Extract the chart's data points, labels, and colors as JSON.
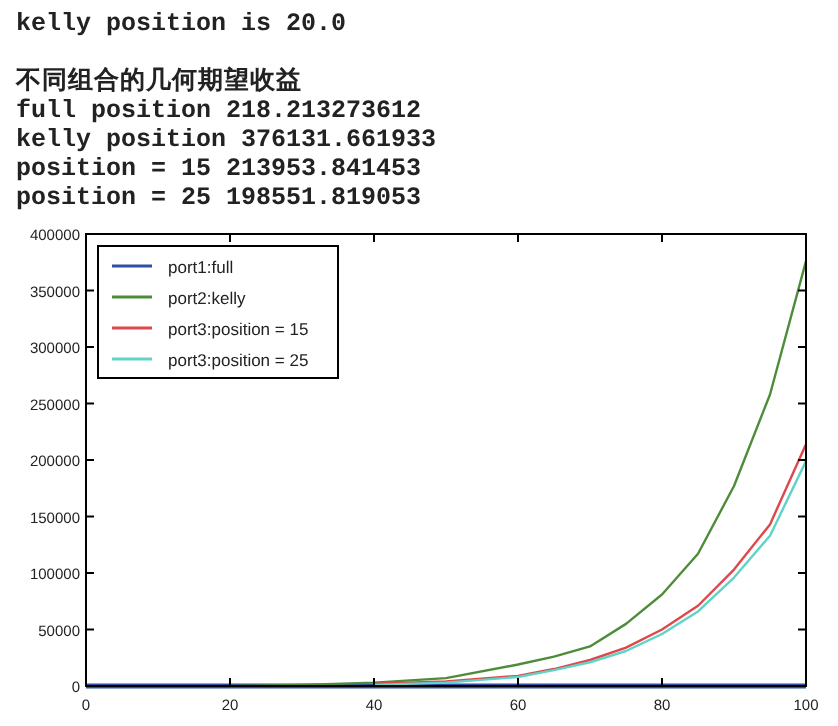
{
  "chart_data": {
    "type": "line",
    "annotations": [
      "kelly position is 20.0",
      "不同组合的几何期望收益",
      "full position 218.213273612",
      "kelly position 376131.661933",
      "position = 15 213953.841453",
      "position = 25 198551.819053"
    ],
    "x": [
      0,
      10,
      20,
      30,
      40,
      50,
      60,
      65,
      70,
      75,
      80,
      85,
      90,
      95,
      100
    ],
    "series": [
      {
        "name": "port1:full",
        "color": "#2d4fa8",
        "values": [
          0,
          0,
          0,
          0,
          0,
          0,
          0,
          0,
          0,
          0,
          0,
          0,
          0,
          0,
          0
        ]
      },
      {
        "name": "port2:kelly",
        "color": "#4e8c3a",
        "values": [
          null,
          null,
          0,
          1000,
          3000,
          7000,
          19000,
          26000,
          35000,
          55000,
          81000,
          117000,
          177000,
          258000,
          376000
        ]
      },
      {
        "name": "port3:position = 15",
        "color": "#e0474c",
        "values": [
          null,
          null,
          null,
          null,
          2000,
          4000,
          9000,
          15000,
          23000,
          34000,
          50000,
          71000,
          103000,
          143000,
          214000
        ]
      },
      {
        "name": "port3:position = 25",
        "color": "#5fd3c8",
        "values": [
          null,
          null,
          null,
          null,
          1000,
          3000,
          8000,
          14000,
          21000,
          31000,
          46000,
          66000,
          96000,
          133000,
          199000
        ]
      }
    ],
    "xlim": [
      0,
      100
    ],
    "ylim": [
      0,
      400000
    ],
    "xticks": [
      0,
      20,
      40,
      60,
      80,
      100
    ],
    "yticks": [
      0,
      50000,
      100000,
      150000,
      200000,
      250000,
      300000,
      350000,
      400000
    ],
    "legend": "top left",
    "grid": false,
    "marker": "none",
    "line_style": "solid"
  }
}
